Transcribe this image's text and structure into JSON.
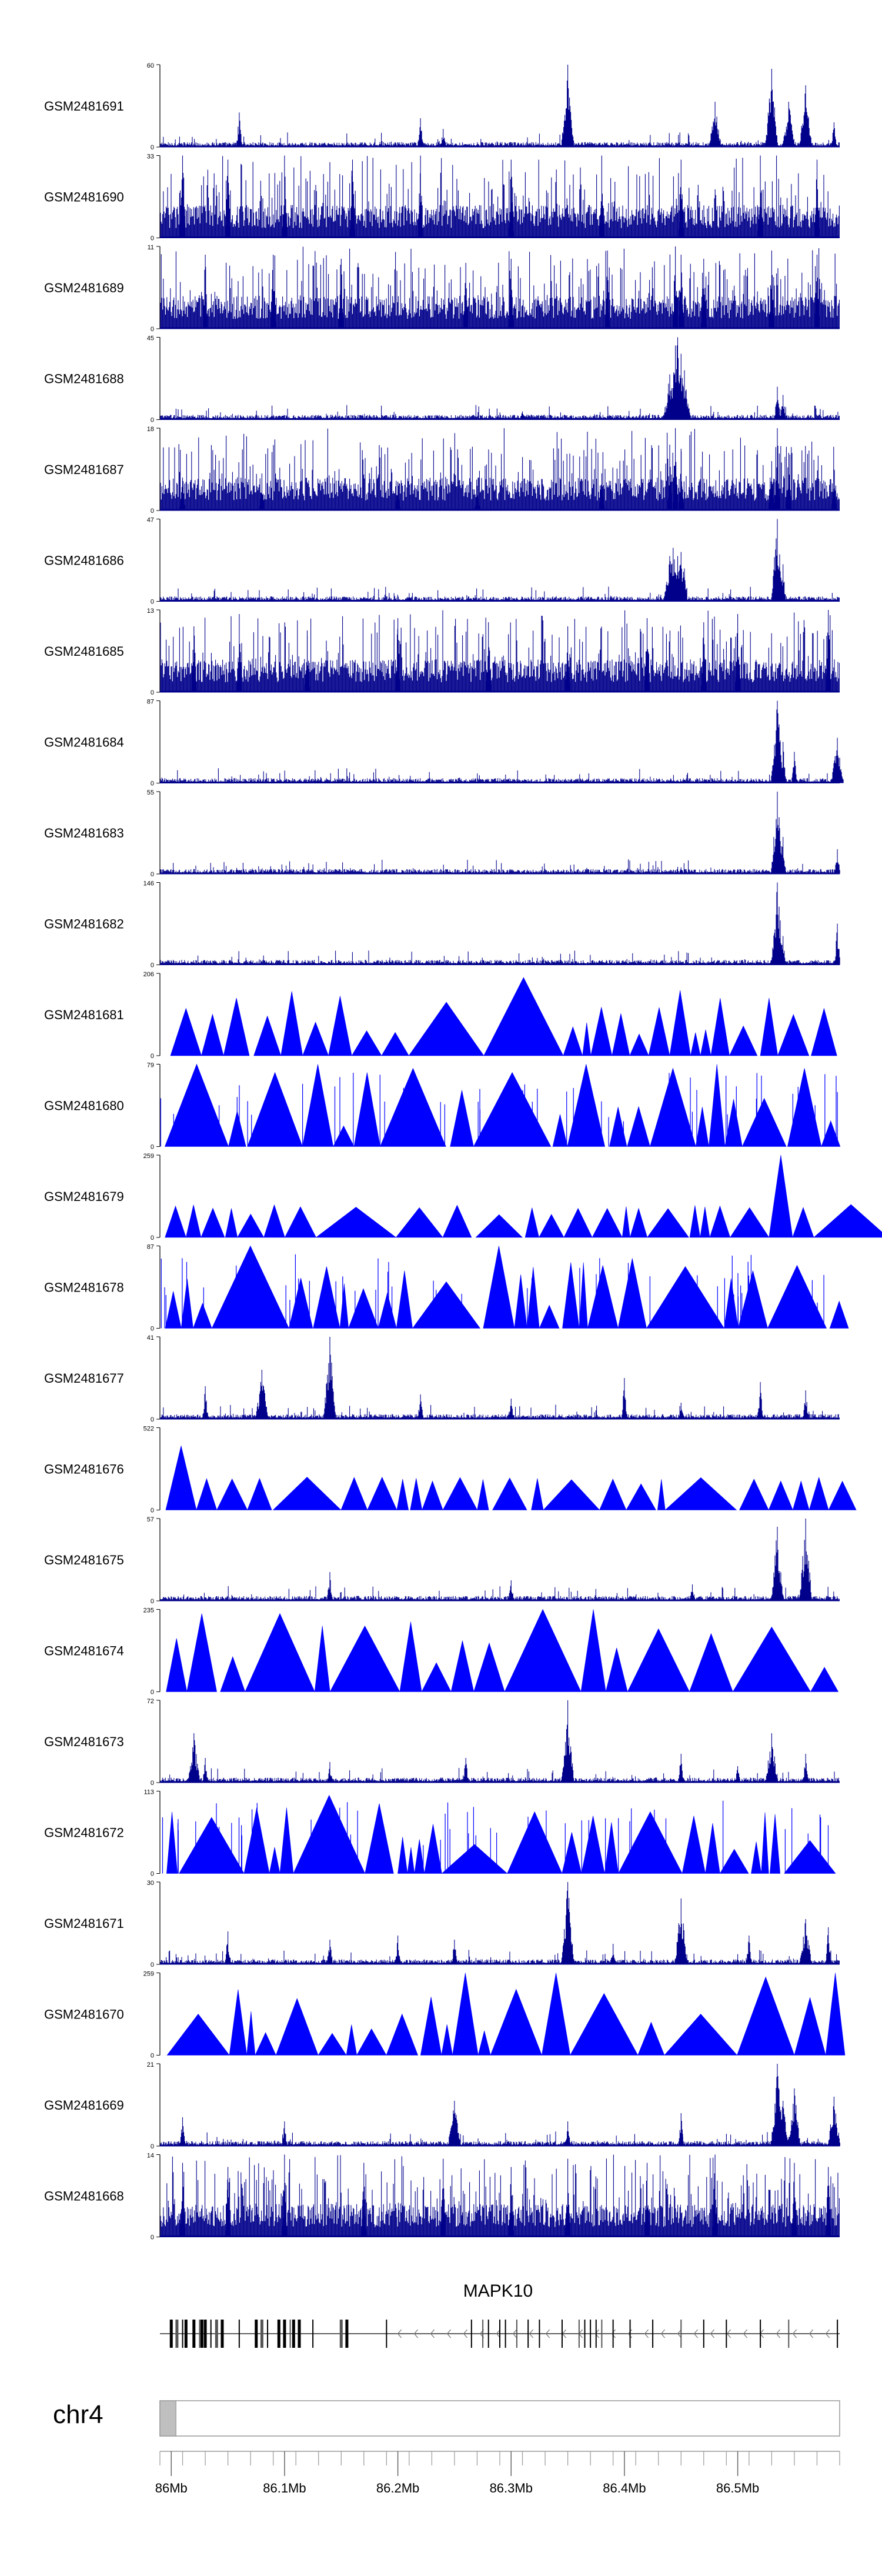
{
  "colors": {
    "signal": "#0000ff",
    "signal_dark": "#00008b",
    "axis": "#000000",
    "ideogram_fill": "#f2f2f2",
    "ideogram_highlight": "#bfbfbf"
  },
  "chart_data": {
    "type": "genome-browser-coverage",
    "region": {
      "chromosome": "chr4",
      "start_mb": 85.99,
      "end_mb": 86.59
    },
    "tracks": [
      {
        "name": "GSM2481691",
        "ymax": "60",
        "style": "spiky",
        "peaks": [
          [
            86.06,
            0.42
          ],
          [
            86.22,
            0.35
          ],
          [
            86.24,
            0.22
          ],
          [
            86.35,
            1.0
          ],
          [
            86.48,
            0.55
          ],
          [
            86.53,
            0.95
          ],
          [
            86.545,
            0.55
          ],
          [
            86.56,
            0.75
          ],
          [
            86.585,
            0.3
          ]
        ]
      },
      {
        "name": "GSM2481690",
        "ymax": "33",
        "style": "dense",
        "peaks": [
          [
            86.01,
            1.0
          ],
          [
            86.05,
            0.95
          ],
          [
            86.1,
            1.0
          ],
          [
            86.16,
            0.95
          ],
          [
            86.22,
            1.0
          ],
          [
            86.3,
            0.95
          ],
          [
            86.38,
            1.0
          ],
          [
            86.45,
            0.95
          ],
          [
            86.52,
            1.0
          ],
          [
            86.57,
            0.95
          ]
        ]
      },
      {
        "name": "GSM2481689",
        "ymax": "11",
        "style": "dense",
        "peaks": [
          [
            86.03,
            0.9
          ],
          [
            86.09,
            0.9
          ],
          [
            86.15,
            0.85
          ],
          [
            86.26,
            0.8
          ],
          [
            86.3,
            0.85
          ],
          [
            86.385,
            0.95
          ],
          [
            86.445,
            1.0
          ],
          [
            86.45,
            0.9
          ],
          [
            86.47,
            0.85
          ],
          [
            86.53,
            0.95
          ],
          [
            86.57,
            0.9
          ]
        ]
      },
      {
        "name": "GSM2481688",
        "ymax": "45",
        "style": "spiky",
        "peaks": [
          [
            86.44,
            0.55
          ],
          [
            86.445,
            0.9
          ],
          [
            86.447,
            1.0
          ],
          [
            86.45,
            0.8
          ],
          [
            86.453,
            0.6
          ],
          [
            86.535,
            0.4
          ],
          [
            86.54,
            0.3
          ],
          [
            86.31,
            0.1
          ]
        ]
      },
      {
        "name": "GSM2481687",
        "ymax": "18",
        "style": "dense",
        "peaks": [
          [
            86.01,
            0.4
          ],
          [
            86.08,
            0.45
          ],
          [
            86.2,
            0.35
          ],
          [
            86.27,
            0.3
          ],
          [
            86.38,
            0.45
          ],
          [
            86.44,
            0.8
          ],
          [
            86.445,
            1.0
          ],
          [
            86.45,
            0.75
          ],
          [
            86.53,
            0.6
          ],
          [
            86.535,
            1.0
          ],
          [
            86.545,
            0.7
          ],
          [
            86.585,
            0.5
          ]
        ]
      },
      {
        "name": "GSM2481686",
        "ymax": "47",
        "style": "spiky",
        "peaks": [
          [
            86.44,
            0.55
          ],
          [
            86.443,
            0.65
          ],
          [
            86.447,
            0.55
          ],
          [
            86.45,
            0.6
          ],
          [
            86.453,
            0.4
          ],
          [
            86.535,
            1.0
          ],
          [
            86.54,
            0.45
          ],
          [
            86.21,
            0.1
          ]
        ]
      },
      {
        "name": "GSM2481685",
        "ymax": "13",
        "style": "dense",
        "peaks": [
          [
            86.02,
            0.8
          ],
          [
            86.06,
            0.95
          ],
          [
            86.12,
            0.75
          ],
          [
            86.2,
            0.9
          ],
          [
            86.28,
            0.85
          ],
          [
            86.35,
            0.8
          ],
          [
            86.42,
            0.9
          ],
          [
            86.47,
            0.85
          ],
          [
            86.5,
            0.95
          ],
          [
            86.58,
            1.0
          ]
        ]
      },
      {
        "name": "GSM2481684",
        "ymax": "87",
        "style": "spiky",
        "peaks": [
          [
            86.535,
            1.0
          ],
          [
            86.54,
            0.5
          ],
          [
            86.55,
            0.38
          ],
          [
            86.588,
            0.55
          ]
        ]
      },
      {
        "name": "GSM2481683",
        "ymax": "55",
        "style": "spiky",
        "peaks": [
          [
            86.535,
            1.0
          ],
          [
            86.54,
            0.45
          ],
          [
            86.45,
            0.08
          ],
          [
            86.588,
            0.3
          ]
        ]
      },
      {
        "name": "GSM2481682",
        "ymax": "146",
        "style": "spiky",
        "peaks": [
          [
            86.535,
            1.0
          ],
          [
            86.54,
            0.35
          ],
          [
            86.588,
            0.5
          ]
        ]
      },
      {
        "name": "GSM2481681",
        "ymax": "206",
        "style": "triangles",
        "peaks": [
          [
            86.05,
            0.65
          ],
          [
            86.12,
            0.38
          ],
          [
            86.23,
            0.3
          ],
          [
            86.26,
            0.65
          ],
          [
            86.3,
            0.4
          ],
          [
            86.34,
            0.95
          ],
          [
            86.36,
            0.35
          ],
          [
            86.43,
            0.45
          ],
          [
            86.53,
            0.7
          ],
          [
            86.56,
            0.5
          ]
        ]
      },
      {
        "name": "GSM2481680",
        "ymax": "79",
        "style": "triangles",
        "peaks": [
          [
            86.01,
            1.0
          ],
          [
            86.03,
            0.95
          ],
          [
            86.07,
            0.9
          ],
          [
            86.12,
            1.0
          ],
          [
            86.17,
            0.9
          ],
          [
            86.24,
            0.95
          ],
          [
            86.3,
            0.9
          ],
          [
            86.37,
            1.0
          ],
          [
            86.43,
            0.95
          ],
          [
            86.48,
            1.0
          ],
          [
            86.55,
            0.95
          ]
        ]
      },
      {
        "name": "GSM2481679",
        "ymax": "259",
        "style": "triangles",
        "peaks": [
          [
            86.01,
            0.2
          ],
          [
            86.05,
            0.2
          ],
          [
            86.1,
            0.15
          ],
          [
            86.15,
            0.12
          ],
          [
            86.2,
            0.15
          ],
          [
            86.25,
            0.18
          ],
          [
            86.32,
            0.15
          ],
          [
            86.38,
            0.3
          ],
          [
            86.41,
            0.25
          ],
          [
            86.47,
            0.3
          ],
          [
            86.535,
            1.0
          ],
          [
            86.56,
            0.2
          ],
          [
            86.588,
            0.4
          ]
        ]
      },
      {
        "name": "GSM2481678",
        "ymax": "87",
        "style": "triangles",
        "peaks": [
          [
            86.01,
            0.6
          ],
          [
            86.05,
            0.8
          ],
          [
            86.08,
            1.0
          ],
          [
            86.13,
            0.75
          ],
          [
            86.2,
            0.7
          ],
          [
            86.3,
            1.0
          ],
          [
            86.36,
            0.8
          ],
          [
            86.41,
            0.85
          ],
          [
            86.46,
            0.75
          ],
          [
            86.52,
            0.7
          ],
          [
            86.57,
            0.75
          ]
        ]
      },
      {
        "name": "GSM2481677",
        "ymax": "41",
        "style": "spiky",
        "peaks": [
          [
            86.03,
            0.4
          ],
          [
            86.08,
            0.6
          ],
          [
            86.14,
            1.0
          ],
          [
            86.22,
            0.3
          ],
          [
            86.3,
            0.25
          ],
          [
            86.4,
            0.5
          ],
          [
            86.45,
            0.2
          ],
          [
            86.52,
            0.45
          ],
          [
            86.56,
            0.35
          ]
        ]
      },
      {
        "name": "GSM2481676",
        "ymax": "522",
        "style": "triangles",
        "peaks": [
          [
            86.01,
            0.35
          ],
          [
            86.02,
            0.78
          ],
          [
            86.07,
            0.35
          ],
          [
            86.13,
            0.4
          ],
          [
            86.2,
            0.35
          ],
          [
            86.26,
            0.35
          ],
          [
            86.33,
            0.35
          ],
          [
            86.4,
            0.35
          ],
          [
            86.47,
            0.35
          ],
          [
            86.53,
            0.3
          ]
        ]
      },
      {
        "name": "GSM2481675",
        "ymax": "57",
        "style": "spiky",
        "peaks": [
          [
            86.14,
            0.35
          ],
          [
            86.3,
            0.25
          ],
          [
            86.535,
            0.9
          ],
          [
            86.56,
            1.0
          ],
          [
            86.46,
            0.2
          ]
        ]
      },
      {
        "name": "GSM2481674",
        "ymax": "235",
        "style": "triangles",
        "peaks": [
          [
            86.03,
            0.95
          ],
          [
            86.08,
            0.85
          ],
          [
            86.1,
            0.95
          ],
          [
            86.14,
            0.8
          ],
          [
            86.18,
            0.6
          ],
          [
            86.22,
            0.85
          ],
          [
            86.31,
            1.0
          ],
          [
            86.38,
            1.0
          ],
          [
            86.46,
            0.7
          ],
          [
            86.5,
            0.75
          ],
          [
            86.56,
            0.5
          ]
        ]
      },
      {
        "name": "GSM2481673",
        "ymax": "72",
        "style": "spiky",
        "peaks": [
          [
            86.02,
            0.6
          ],
          [
            86.03,
            0.3
          ],
          [
            86.14,
            0.25
          ],
          [
            86.26,
            0.3
          ],
          [
            86.35,
            1.0
          ],
          [
            86.45,
            0.35
          ],
          [
            86.5,
            0.2
          ],
          [
            86.53,
            0.6
          ],
          [
            86.56,
            0.35
          ]
        ]
      },
      {
        "name": "GSM2481672",
        "ymax": "113",
        "style": "triangles",
        "peaks": [
          [
            86.01,
            0.55
          ],
          [
            86.07,
            0.8
          ],
          [
            86.1,
            0.8
          ],
          [
            86.13,
            0.95
          ],
          [
            86.18,
            0.85
          ],
          [
            86.23,
            0.6
          ],
          [
            86.3,
            0.75
          ],
          [
            86.37,
            0.7
          ],
          [
            86.42,
            0.75
          ],
          [
            86.47,
            0.7
          ],
          [
            86.53,
            0.6
          ]
        ]
      },
      {
        "name": "GSM2481671",
        "ymax": "30",
        "style": "spiky",
        "peaks": [
          [
            86.05,
            0.4
          ],
          [
            86.14,
            0.3
          ],
          [
            86.2,
            0.35
          ],
          [
            86.25,
            0.3
          ],
          [
            86.35,
            1.0
          ],
          [
            86.39,
            0.25
          ],
          [
            86.45,
            0.8
          ],
          [
            86.51,
            0.35
          ],
          [
            86.56,
            0.55
          ],
          [
            86.58,
            0.45
          ]
        ]
      },
      {
        "name": "GSM2481670",
        "ymax": "259",
        "style": "triangles",
        "peaks": [
          [
            86.02,
            0.5
          ],
          [
            86.05,
            0.5
          ],
          [
            86.12,
            0.5
          ],
          [
            86.19,
            0.5
          ],
          [
            86.26,
            1.0
          ],
          [
            86.31,
            0.8
          ],
          [
            86.34,
            1.0
          ],
          [
            86.37,
            0.75
          ],
          [
            86.41,
            0.5
          ],
          [
            86.46,
            0.5
          ],
          [
            86.5,
            0.95
          ],
          [
            86.55,
            0.7
          ],
          [
            86.58,
            1.0
          ]
        ]
      },
      {
        "name": "GSM2481669",
        "ymax": "21",
        "style": "spiky",
        "peaks": [
          [
            86.01,
            0.35
          ],
          [
            86.1,
            0.3
          ],
          [
            86.25,
            0.55
          ],
          [
            86.35,
            0.3
          ],
          [
            86.45,
            0.4
          ],
          [
            86.535,
            1.0
          ],
          [
            86.54,
            0.55
          ],
          [
            86.55,
            0.7
          ],
          [
            86.585,
            0.6
          ]
        ]
      },
      {
        "name": "GSM2481668",
        "ymax": "14",
        "style": "dense",
        "peaks": [
          [
            86.01,
            0.9
          ],
          [
            86.05,
            0.85
          ],
          [
            86.1,
            1.0
          ],
          [
            86.17,
            0.9
          ],
          [
            86.24,
            0.95
          ],
          [
            86.3,
            0.85
          ],
          [
            86.35,
            0.95
          ],
          [
            86.42,
            0.9
          ],
          [
            86.48,
            1.0
          ],
          [
            86.55,
            0.9
          ],
          [
            86.58,
            0.85
          ]
        ]
      }
    ],
    "gene": {
      "name": "MAPK10",
      "strand": "-",
      "start_mb": 85.99,
      "end_mb": 86.59,
      "exons_mb": [
        86.0,
        86.005,
        86.01,
        86.013,
        86.02,
        86.025,
        86.027,
        86.03,
        86.035,
        86.04,
        86.045,
        86.06,
        86.075,
        86.08,
        86.085,
        86.095,
        86.1,
        86.105,
        86.108,
        86.113,
        86.125,
        86.15,
        86.155,
        86.19,
        86.265,
        86.275,
        86.28,
        86.29,
        86.295,
        86.305,
        86.315,
        86.325,
        86.345,
        86.36,
        86.365,
        86.37,
        86.375,
        86.38,
        86.39,
        86.405,
        86.425,
        86.45,
        86.47,
        86.49,
        86.52,
        86.545,
        86.588
      ]
    },
    "ideogram": {
      "chromosome": "chr4",
      "highlight_start_mb": 85.99,
      "highlight_end_mb": 86.0
    },
    "x_axis": {
      "tick_labels": [
        "86Mb",
        "86.1Mb",
        "86.2Mb",
        "86.3Mb",
        "86.4Mb",
        "86.5Mb"
      ],
      "tick_values_mb": [
        86.0,
        86.1,
        86.2,
        86.3,
        86.4,
        86.5
      ],
      "minor_tick_step_mb": 0.02
    }
  }
}
